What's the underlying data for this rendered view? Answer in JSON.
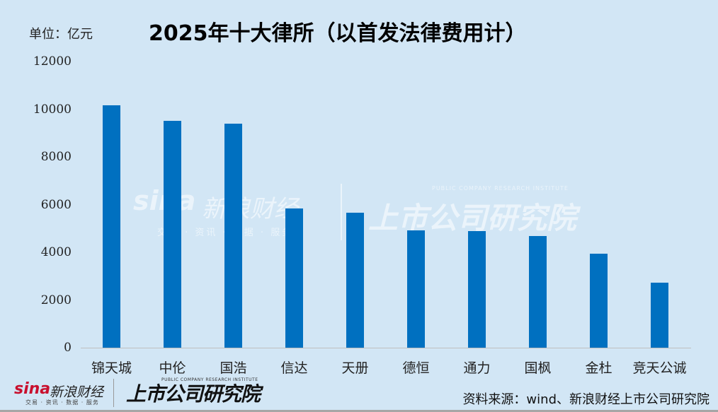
{
  "header": {
    "unit_label": "单位：亿元",
    "title": "2025年十大律所（以首发法律费用计）"
  },
  "colors": {
    "background": "#D2E6F5",
    "bar": "#0070C0",
    "axis_line": "#BFBFBF"
  },
  "y_axis": {
    "ticks": [
      "12000",
      "10000",
      "8000",
      "6000",
      "4000",
      "2000",
      "0"
    ]
  },
  "x_axis": {
    "categories": [
      "锦天城",
      "中伦",
      "国浩",
      "信达",
      "天册",
      "德恒",
      "通力",
      "国枫",
      "金杜",
      "竞天公诚"
    ]
  },
  "chart_data": {
    "type": "bar",
    "title": "2025年十大律所（以首发法律费用计）",
    "subtitle": "单位：亿元",
    "xlabel": "",
    "ylabel": "",
    "categories": [
      "锦天城",
      "中伦",
      "国浩",
      "信达",
      "天册",
      "德恒",
      "通力",
      "国枫",
      "金杜",
      "竞天公诚"
    ],
    "values": [
      10160,
      9510,
      9390,
      5840,
      5660,
      4920,
      4890,
      4680,
      3940,
      2730
    ],
    "ylim": [
      0,
      12000
    ],
    "yticks": [
      0,
      2000,
      4000,
      6000,
      8000,
      10000,
      12000
    ],
    "grid": false,
    "legend": null,
    "bar_color": "#0070C0"
  },
  "watermark": {
    "sina_logo": "sina",
    "sina_name": "新浪财经",
    "sina_tagline": "交易 · 资讯 · 数据 · 服务",
    "institute_name": "上市公司研究院",
    "institute_en": "PUBLIC COMPANY RESEARCH INSTITUTE"
  },
  "footer": {
    "sina_logo": "sina",
    "sina_name": "新浪财经",
    "sina_tagline": "交易 · 资讯 · 数据 · 服务",
    "institute_name": "上市公司研究院",
    "institute_en": "PUBLIC COMPANY RESEARCH INSTITUTE",
    "source": "资料来源：wind、新浪财经上市公司研究院"
  }
}
